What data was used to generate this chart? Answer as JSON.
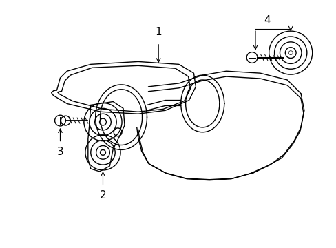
{
  "background_color": "#ffffff",
  "line_color": "#000000",
  "fig_width": 4.89,
  "fig_height": 3.6,
  "dpi": 100,
  "belt_lw": 1.0,
  "label_fontsize": 11
}
